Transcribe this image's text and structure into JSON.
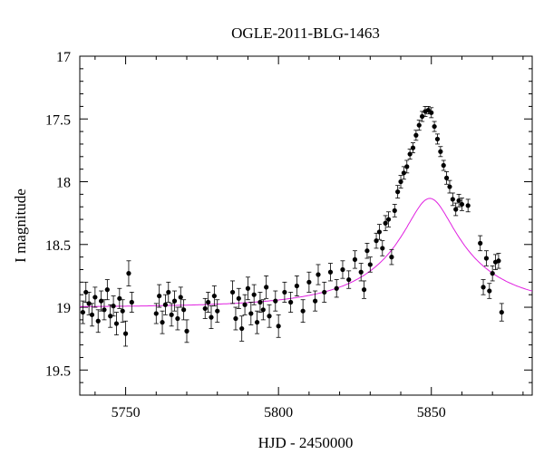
{
  "chart_data": {
    "type": "scatter",
    "title": "OGLE-2011-BLG-1463",
    "xlabel": "HJD - 2450000",
    "ylabel": "I magnitude",
    "xlim": [
      5735,
      5883
    ],
    "ylim": [
      19.7,
      17.0
    ],
    "y_inverted": true,
    "grid": false,
    "legend": "none",
    "x_ticks": [
      5750,
      5800,
      5850
    ],
    "x_tick_labels": [
      "5750",
      "5800",
      "5850"
    ],
    "y_ticks": [
      17.0,
      17.5,
      18.0,
      18.5,
      19.0,
      19.5
    ],
    "y_tick_labels": [
      "17",
      "17.5",
      "18",
      "18.5",
      "19",
      "19.5"
    ],
    "model_color": "#e020e0",
    "model": {
      "label": "",
      "t0": 5849.5,
      "u0": 0.2,
      "tE": 38,
      "baseline": 19.0,
      "fs": 0.3
    },
    "series": [
      {
        "label": "",
        "marker_color": "#000000",
        "points": [
          [
            5736.0,
            19.04,
            0.09
          ],
          [
            5737.0,
            18.88,
            0.08
          ],
          [
            5738.0,
            18.97,
            0.09
          ],
          [
            5739.0,
            19.06,
            0.09
          ],
          [
            5740.0,
            18.92,
            0.08
          ],
          [
            5741.0,
            19.11,
            0.09
          ],
          [
            5742.0,
            18.95,
            0.08
          ],
          [
            5743.0,
            19.02,
            0.08
          ],
          [
            5744.0,
            18.86,
            0.08
          ],
          [
            5745.0,
            19.07,
            0.09
          ],
          [
            5746.0,
            18.99,
            0.08
          ],
          [
            5747.0,
            19.13,
            0.09
          ],
          [
            5748.0,
            18.93,
            0.08
          ],
          [
            5749.0,
            19.03,
            0.09
          ],
          [
            5750.0,
            19.21,
            0.1
          ],
          [
            5751.0,
            18.73,
            0.1
          ],
          [
            5752.0,
            18.96,
            0.08
          ],
          [
            5760.0,
            19.05,
            0.08
          ],
          [
            5761.0,
            18.91,
            0.09
          ],
          [
            5762.0,
            19.12,
            0.09
          ],
          [
            5763.0,
            18.98,
            0.08
          ],
          [
            5764.0,
            18.88,
            0.08
          ],
          [
            5765.0,
            19.06,
            0.09
          ],
          [
            5766.0,
            18.95,
            0.08
          ],
          [
            5767.0,
            19.09,
            0.09
          ],
          [
            5768.0,
            18.92,
            0.08
          ],
          [
            5769.0,
            19.02,
            0.08
          ],
          [
            5770.0,
            19.19,
            0.09
          ],
          [
            5776.0,
            19.01,
            0.08
          ],
          [
            5777.0,
            18.96,
            0.08
          ],
          [
            5778.0,
            19.08,
            0.09
          ],
          [
            5779.0,
            18.91,
            0.08
          ],
          [
            5780.0,
            19.03,
            0.09
          ],
          [
            5785.0,
            18.88,
            0.09
          ],
          [
            5786.0,
            19.09,
            0.09
          ],
          [
            5787.0,
            18.93,
            0.08
          ],
          [
            5788.0,
            19.17,
            0.1
          ],
          [
            5789.0,
            18.98,
            0.08
          ],
          [
            5790.0,
            18.85,
            0.09
          ],
          [
            5791.0,
            19.05,
            0.09
          ],
          [
            5792.0,
            18.9,
            0.08
          ],
          [
            5793.0,
            19.12,
            0.09
          ],
          [
            5794.0,
            18.96,
            0.08
          ],
          [
            5795.0,
            19.02,
            0.08
          ],
          [
            5796.0,
            18.84,
            0.09
          ],
          [
            5797.0,
            19.07,
            0.09
          ],
          [
            5799.0,
            18.95,
            0.08
          ],
          [
            5800.0,
            19.15,
            0.09
          ],
          [
            5802.0,
            18.88,
            0.08
          ],
          [
            5804.0,
            18.96,
            0.08
          ],
          [
            5806.0,
            18.83,
            0.08
          ],
          [
            5808.0,
            19.03,
            0.09
          ],
          [
            5810.0,
            18.8,
            0.08
          ],
          [
            5812.0,
            18.95,
            0.08
          ],
          [
            5813.0,
            18.74,
            0.08
          ],
          [
            5815.0,
            18.88,
            0.08
          ],
          [
            5817.0,
            18.72,
            0.07
          ],
          [
            5819.0,
            18.85,
            0.07
          ],
          [
            5821.0,
            18.7,
            0.07
          ],
          [
            5823.0,
            18.78,
            0.07
          ],
          [
            5825.0,
            18.62,
            0.07
          ],
          [
            5827.0,
            18.72,
            0.07
          ],
          [
            5828.0,
            18.86,
            0.07
          ],
          [
            5829.0,
            18.55,
            0.06
          ],
          [
            5830.0,
            18.66,
            0.06
          ],
          [
            5832.0,
            18.47,
            0.06
          ],
          [
            5833.0,
            18.4,
            0.06
          ],
          [
            5834.0,
            18.53,
            0.06
          ],
          [
            5835.0,
            18.33,
            0.06
          ],
          [
            5836.0,
            18.3,
            0.06
          ],
          [
            5837.0,
            18.6,
            0.06
          ],
          [
            5838.0,
            18.23,
            0.05
          ],
          [
            5839.0,
            18.08,
            0.05
          ],
          [
            5840.0,
            18.0,
            0.05
          ],
          [
            5841.0,
            17.93,
            0.05
          ],
          [
            5842.0,
            17.88,
            0.05
          ],
          [
            5843.0,
            17.78,
            0.04
          ],
          [
            5844.0,
            17.73,
            0.04
          ],
          [
            5845.0,
            17.63,
            0.04
          ],
          [
            5846.0,
            17.55,
            0.04
          ],
          [
            5847.0,
            17.48,
            0.04
          ],
          [
            5848.0,
            17.44,
            0.04
          ],
          [
            5849.0,
            17.43,
            0.03
          ],
          [
            5850.0,
            17.45,
            0.04
          ],
          [
            5851.0,
            17.56,
            0.04
          ],
          [
            5852.0,
            17.66,
            0.04
          ],
          [
            5853.0,
            17.76,
            0.04
          ],
          [
            5854.0,
            17.87,
            0.04
          ],
          [
            5855.0,
            17.97,
            0.05
          ],
          [
            5856.0,
            18.04,
            0.05
          ],
          [
            5857.0,
            18.14,
            0.05
          ],
          [
            5858.0,
            18.22,
            0.05
          ],
          [
            5859.0,
            18.15,
            0.05
          ],
          [
            5860.0,
            18.18,
            0.05
          ],
          [
            5862.0,
            18.19,
            0.05
          ],
          [
            5866.0,
            18.49,
            0.06
          ],
          [
            5867.0,
            18.84,
            0.06
          ],
          [
            5868.0,
            18.61,
            0.06
          ],
          [
            5869.0,
            18.87,
            0.06
          ],
          [
            5870.0,
            18.73,
            0.06
          ],
          [
            5871.0,
            18.64,
            0.06
          ],
          [
            5872.0,
            18.63,
            0.06
          ],
          [
            5873.0,
            19.04,
            0.07
          ]
        ]
      }
    ]
  }
}
